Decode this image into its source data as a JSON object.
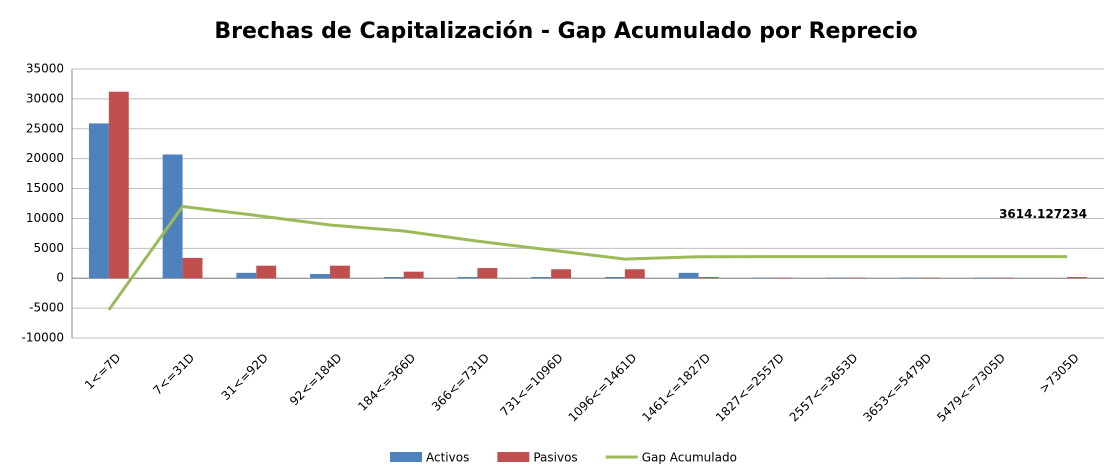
{
  "chart_data": {
    "type": "bar",
    "title": "Brechas de Capitalización - Gap Acumulado por Reprecio",
    "categories": [
      "1<=7D",
      "7<=31D",
      "31<=92D",
      "92<=184D",
      "184<=366D",
      "366<=731D",
      "731<=1096D",
      "1096<=1461D",
      "1461<=1827D",
      "1827<=2557D",
      "2557<=3653D",
      "3653<=5479D",
      "5479<=7305D",
      ">7305D"
    ],
    "series": [
      {
        "name": "Activos",
        "color": "#4f81bd",
        "values": [
          25900,
          20700,
          900,
          700,
          200,
          200,
          200,
          200,
          900,
          100,
          100,
          100,
          100,
          0
        ]
      },
      {
        "name": "Pasivos",
        "color": "#c0504d",
        "values": [
          31200,
          3400,
          2100,
          2100,
          1100,
          1700,
          1500,
          1500,
          200,
          100,
          100,
          100,
          100,
          200
        ]
      },
      {
        "name": "Gap Acumulado",
        "color": "#9bbb59",
        "type": "line",
        "values": [
          -5300,
          12000,
          10500,
          8900,
          7900,
          6200,
          4700,
          3200,
          3600,
          3614,
          3614,
          3614,
          3614,
          3614.127234
        ],
        "value_labels": [
          null,
          null,
          null,
          null,
          null,
          null,
          null,
          null,
          null,
          null,
          null,
          null,
          null,
          "3614.127234"
        ]
      }
    ],
    "ylim": [
      -10000,
      35000
    ],
    "yticks": [
      -10000,
      -5000,
      0,
      5000,
      10000,
      15000,
      20000,
      25000,
      30000,
      35000
    ],
    "grid": true,
    "legend": "bottom"
  }
}
